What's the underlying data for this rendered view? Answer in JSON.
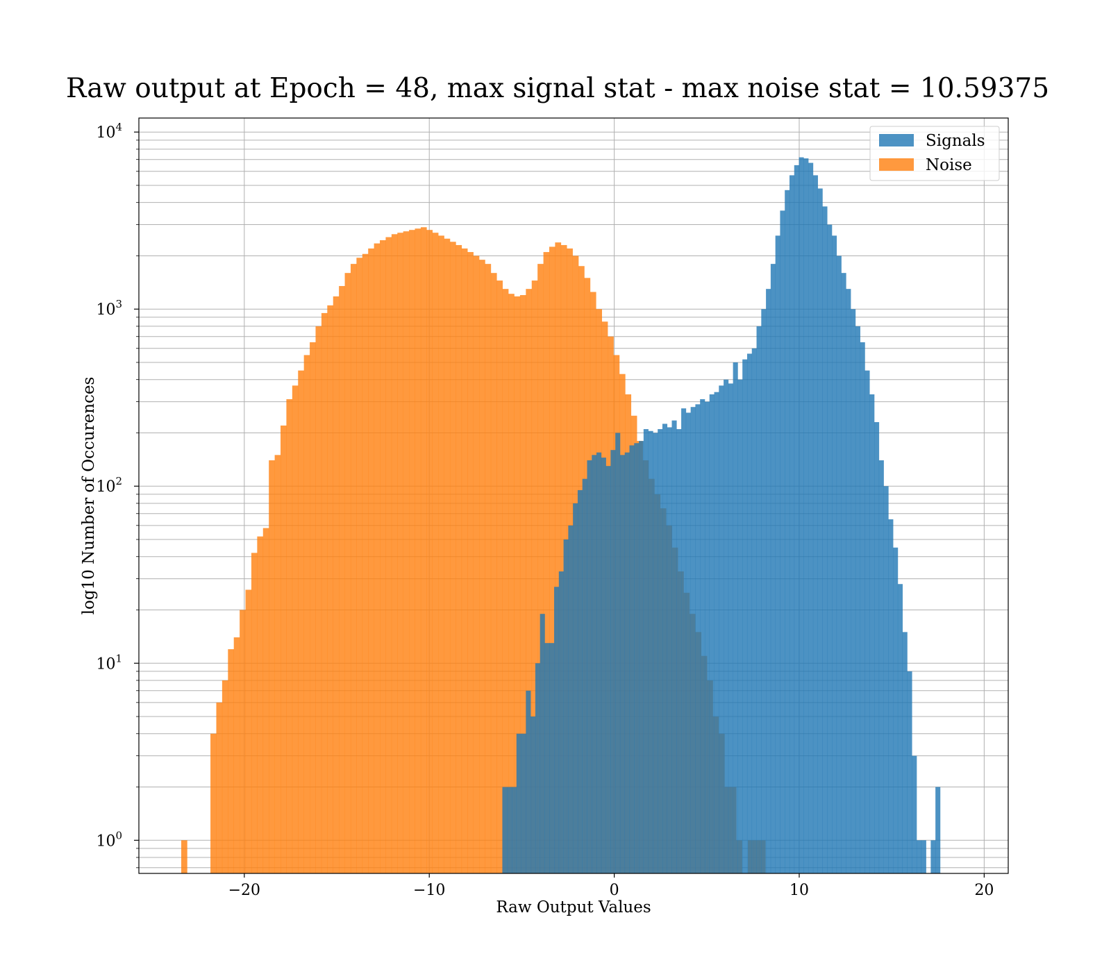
{
  "chart_data": {
    "type": "histogram",
    "title": "Raw output at Epoch = 48, max signal stat - max noise stat = 10.59375",
    "xlabel": "Raw Output Values",
    "ylabel": "log10 Number of Occurences",
    "yscale": "log",
    "xlim": [
      -25.7,
      21.3
    ],
    "ylim": [
      0.65,
      12000
    ],
    "x_ticks": [
      -20,
      -10,
      0,
      10,
      20
    ],
    "x_tick_labels": [
      "−20",
      "−10",
      "0",
      "10",
      "20"
    ],
    "y_ticks": [
      1,
      10,
      100,
      1000,
      10000
    ],
    "y_tick_labels": [
      {
        "base": "10",
        "exp": "0"
      },
      {
        "base": "10",
        "exp": "1"
      },
      {
        "base": "10",
        "exp": "2"
      },
      {
        "base": "10",
        "exp": "3"
      },
      {
        "base": "10",
        "exp": "4"
      }
    ],
    "grid": true,
    "legend_position": "top-right",
    "colors": {
      "signals": "#1f77b4",
      "noise": "#ff7f0e"
    },
    "bar_opacity": 0.8,
    "series": [
      {
        "name": "Signals",
        "bin_start": -6.05,
        "bin_width": 0.2545,
        "values": [
          2,
          2,
          2,
          4,
          4,
          7,
          5,
          10,
          19,
          13,
          13,
          27,
          33,
          50,
          60,
          80,
          95,
          110,
          140,
          150,
          155,
          145,
          130,
          160,
          200,
          150,
          155,
          170,
          175,
          180,
          210,
          205,
          200,
          210,
          225,
          215,
          235,
          210,
          275,
          260,
          280,
          290,
          310,
          300,
          330,
          340,
          370,
          400,
          380,
          500,
          400,
          520,
          560,
          600,
          800,
          1000,
          1300,
          1800,
          2600,
          3600,
          4700,
          5700,
          6500,
          7200,
          7100,
          6700,
          5700,
          4800,
          3800,
          3000,
          2600,
          2000,
          1600,
          1300,
          1000,
          800,
          650,
          450,
          330,
          230,
          140,
          100,
          65,
          45,
          28,
          15,
          9,
          3,
          1,
          1,
          0,
          1,
          2
        ]
      },
      {
        "name": "Noise",
        "bin_start": -23.41,
        "bin_width": 0.3158,
        "values": [
          1,
          0,
          0,
          0,
          0,
          4,
          6,
          8,
          12,
          14,
          20,
          26,
          42,
          52,
          58,
          140,
          150,
          220,
          310,
          370,
          450,
          550,
          650,
          800,
          950,
          1050,
          1180,
          1350,
          1600,
          1800,
          1950,
          2050,
          2200,
          2350,
          2450,
          2550,
          2650,
          2700,
          2750,
          2800,
          2850,
          2900,
          2800,
          2700,
          2600,
          2500,
          2400,
          2300,
          2200,
          2100,
          2000,
          1900,
          1800,
          1600,
          1450,
          1300,
          1220,
          1180,
          1200,
          1300,
          1450,
          1800,
          2100,
          2250,
          2380,
          2300,
          2200,
          2000,
          1750,
          1500,
          1250,
          1000,
          850,
          700,
          550,
          430,
          330,
          250,
          180,
          140,
          110,
          90,
          75,
          60,
          45,
          33,
          25,
          19,
          15,
          11,
          8,
          5,
          4,
          2,
          2,
          1,
          0,
          1,
          1,
          1
        ]
      }
    ]
  }
}
